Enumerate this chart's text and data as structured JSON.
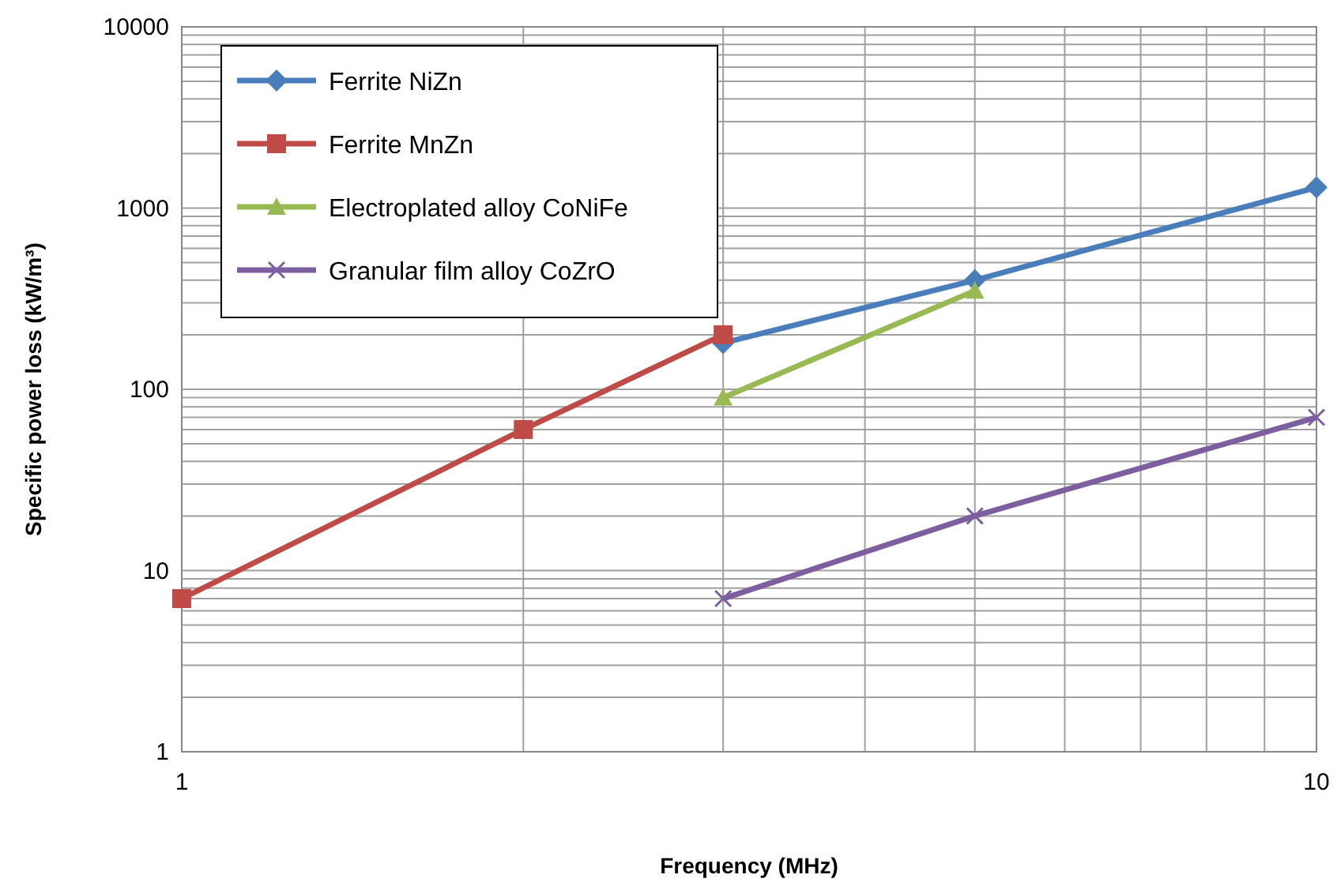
{
  "chart_data": {
    "type": "line",
    "xlabel": "Frequency (MHz)",
    "ylabel": "Specific power loss (kW/m³)",
    "log": "xy",
    "grid": true,
    "legend": "top left",
    "xlim": [
      1,
      10
    ],
    "ylim": [
      1,
      10000
    ],
    "xticks": [
      1,
      {
        "value": 2,
        "label": null
      },
      {
        "value": 3,
        "label": null
      },
      {
        "value": 4,
        "label": null
      },
      {
        "value": 5,
        "label": null
      },
      {
        "value": 6,
        "label": null
      },
      {
        "value": 7,
        "label": null
      },
      {
        "value": 8,
        "label": null
      },
      {
        "value": 9,
        "label": null
      },
      10
    ],
    "yticks": [
      1,
      {
        "value": 2,
        "label": null
      },
      {
        "value": 3,
        "label": null
      },
      {
        "value": 4,
        "label": null
      },
      {
        "value": 5,
        "label": null
      },
      {
        "value": 6,
        "label": null
      },
      {
        "value": 7,
        "label": null
      },
      {
        "value": 8,
        "label": null
      },
      {
        "value": 9,
        "label": null
      },
      10,
      {
        "value": 20,
        "label": null
      },
      {
        "value": 30,
        "label": null
      },
      {
        "value": 40,
        "label": null
      },
      {
        "value": 50,
        "label": null
      },
      {
        "value": 60,
        "label": null
      },
      {
        "value": 70,
        "label": null
      },
      {
        "value": 80,
        "label": null
      },
      {
        "value": 90,
        "label": null
      },
      100,
      {
        "value": 200,
        "label": null
      },
      {
        "value": 300,
        "label": null
      },
      {
        "value": 400,
        "label": null
      },
      {
        "value": 500,
        "label": null
      },
      {
        "value": 600,
        "label": null
      },
      {
        "value": 700,
        "label": null
      },
      {
        "value": 800,
        "label": null
      },
      {
        "value": 900,
        "label": null
      },
      1000,
      {
        "value": 2000,
        "label": null
      },
      {
        "value": 3000,
        "label": null
      },
      {
        "value": 4000,
        "label": null
      },
      {
        "value": 5000,
        "label": null
      },
      {
        "value": 6000,
        "label": null
      },
      {
        "value": 7000,
        "label": null
      },
      {
        "value": 8000,
        "label": null
      },
      {
        "value": 9000,
        "label": null
      },
      10000
    ],
    "series": [
      {
        "name": "Ferrite NiZn",
        "color": "#4a7ebb",
        "marker": "diamond",
        "x": [
          3,
          5,
          10
        ],
        "values": [
          180,
          400,
          1300
        ]
      },
      {
        "name": "Ferrite MnZn",
        "color": "#be4b48",
        "marker": "square",
        "x": [
          1,
          2,
          3
        ],
        "values": [
          7,
          60,
          200
        ]
      },
      {
        "name": "Electroplated alloy CoNiFe",
        "color": "#98b954",
        "marker": "triangle",
        "x": [
          3,
          5
        ],
        "values": [
          90,
          350
        ]
      },
      {
        "name": "Granular film alloy CoZrO",
        "color": "#7d5fa0",
        "marker": "cross",
        "x": [
          3,
          5,
          10
        ],
        "values": [
          7,
          20,
          70
        ]
      }
    ]
  }
}
